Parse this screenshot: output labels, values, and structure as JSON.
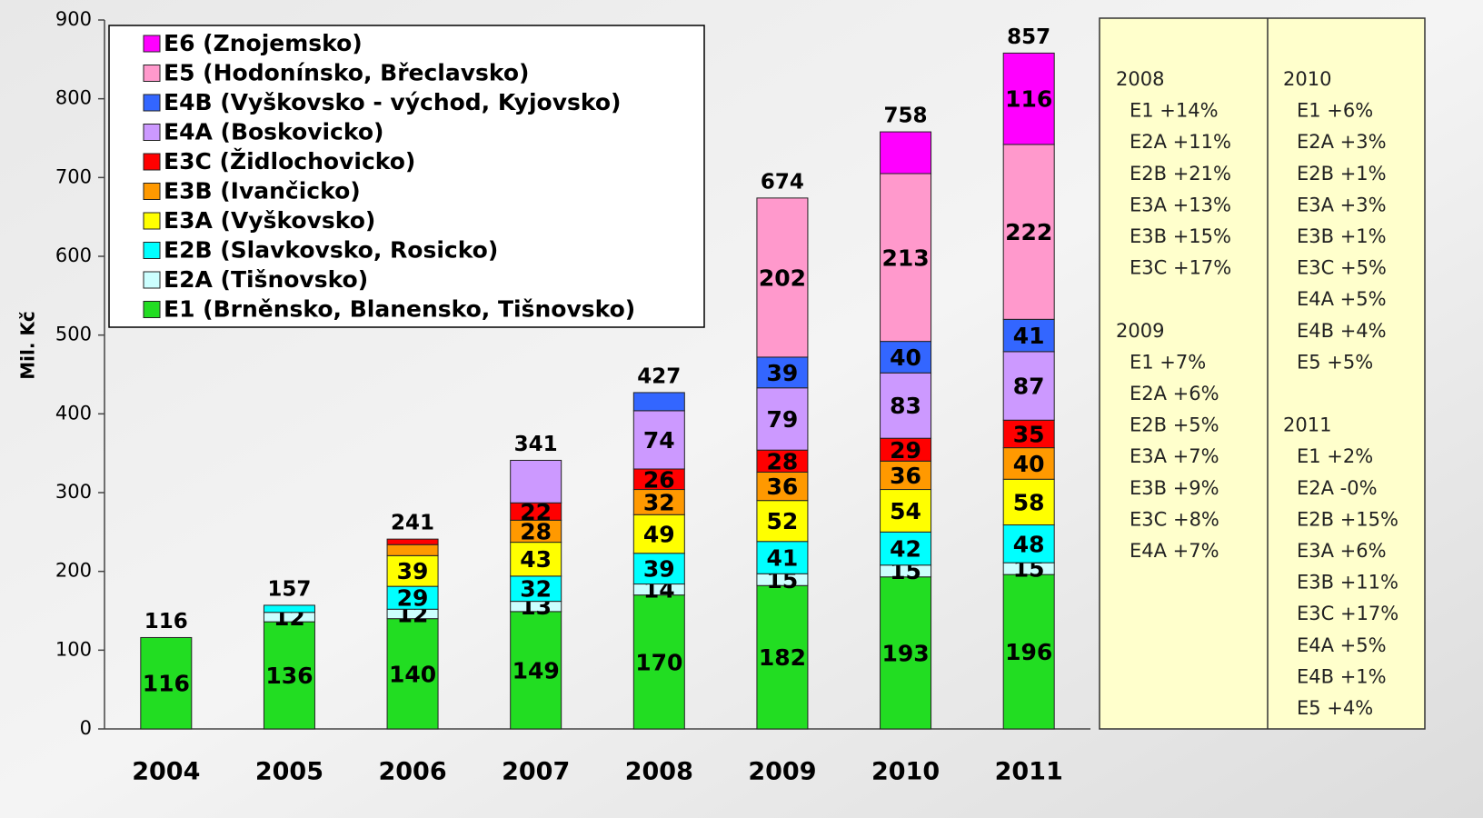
{
  "chart_data": {
    "type": "stacked-bar",
    "y_label": "Mil. Kč",
    "categories": [
      "2004",
      "2005",
      "2006",
      "2007",
      "2008",
      "2009",
      "2010",
      "2011"
    ],
    "ylim": [
      0,
      900
    ],
    "yticks": [
      0,
      100,
      200,
      300,
      400,
      500,
      600,
      700,
      800,
      900
    ],
    "series": [
      {
        "name": "E1 (Brněnsko, Blanensko, Tišnovsko)",
        "color": "#22dd22",
        "values": [
          116,
          136,
          140,
          149,
          170,
          182,
          193,
          196
        ],
        "value_labels": [
          "116",
          "136",
          "140",
          "149",
          "170",
          "182",
          "193",
          "196"
        ]
      },
      {
        "name": "E2A (Tišnovsko)",
        "color": "#ccffff",
        "values": [
          null,
          12,
          12,
          13,
          14,
          15,
          15,
          15
        ],
        "value_labels": [
          null,
          "12",
          "12",
          "13",
          "14",
          "15",
          "15",
          "15"
        ]
      },
      {
        "name": "E2B (Slavkovsko, Rosicko)",
        "color": "#00ffff",
        "values": [
          null,
          9,
          29,
          32,
          39,
          41,
          42,
          48
        ],
        "value_labels": [
          null,
          null,
          "29",
          "32",
          "39",
          "41",
          "42",
          "48"
        ]
      },
      {
        "name": "E3A (Vyškovsko)",
        "color": "#ffff00",
        "values": [
          null,
          null,
          39,
          43,
          49,
          52,
          54,
          58
        ],
        "value_labels": [
          null,
          null,
          "39",
          "43",
          "49",
          "52",
          "54",
          "58"
        ]
      },
      {
        "name": "E3B  (Ivančicko)",
        "color": "#ff9900",
        "values": [
          null,
          null,
          14,
          28,
          32,
          36,
          36,
          40
        ],
        "value_labels": [
          null,
          null,
          null,
          "28",
          "32",
          "36",
          "36",
          "40"
        ]
      },
      {
        "name": "E3C (Židlochovicko)",
        "color": "#ff0000",
        "values": [
          null,
          null,
          7,
          22,
          26,
          28,
          29,
          35
        ],
        "value_labels": [
          null,
          null,
          null,
          "22",
          "26",
          "28",
          "29",
          "35"
        ]
      },
      {
        "name": "E4A (Boskovicko)",
        "color": "#cc99ff",
        "values": [
          null,
          null,
          null,
          54,
          74,
          79,
          83,
          87
        ],
        "value_labels": [
          null,
          null,
          null,
          null,
          "74",
          "79",
          "83",
          "87"
        ]
      },
      {
        "name": "E4B (Vyškovsko - východ, Kyjovsko)",
        "color": "#3366ff",
        "values": [
          null,
          null,
          null,
          null,
          23,
          39,
          40,
          41
        ],
        "value_labels": [
          null,
          null,
          null,
          null,
          null,
          "39",
          "40",
          "41"
        ]
      },
      {
        "name": "E5 (Hodonínsko, Břeclavsko)",
        "color": "#ff99cc",
        "values": [
          null,
          null,
          null,
          null,
          null,
          202,
          213,
          222
        ],
        "value_labels": [
          null,
          null,
          null,
          null,
          null,
          "202",
          "213",
          "222"
        ]
      },
      {
        "name": "E6 (Znojemsko)",
        "color": "#ff00ff",
        "values": [
          null,
          null,
          null,
          null,
          null,
          null,
          53,
          116
        ],
        "value_labels": [
          null,
          null,
          null,
          null,
          null,
          null,
          null,
          "116"
        ]
      }
    ],
    "totals": [
      116,
      157,
      241,
      341,
      427,
      674,
      758,
      857
    ],
    "notes": [
      [
        {
          "year": "2008",
          "items": [
            "E1 +14%",
            "E2A +11%",
            "E2B +21%",
            "E3A +13%",
            "E3B +15%",
            "E3C +17%"
          ]
        },
        {
          "year": "2009",
          "items": [
            "E1 +7%",
            "E2A +6%",
            "E2B +5%",
            "E3A +7%",
            "E3B +9%",
            "E3C +8%",
            "E4A +7%"
          ]
        }
      ],
      [
        {
          "year": "2010",
          "items": [
            "E1 +6%",
            "E2A +3%",
            "E2B +1%",
            "E3A +3%",
            "E3B +1%",
            "E3C +5%",
            "E4A +5%",
            "E4B +4%",
            "E5 +5%"
          ]
        },
        {
          "year": "2011",
          "items": [
            "E1 +2%",
            "E2A -0%",
            "E2B +15%",
            "E3A +6%",
            "E3B +11%",
            "E3C +17%",
            "E4A +5%",
            "E4B +1%",
            "E5 +4%"
          ]
        }
      ]
    ]
  }
}
